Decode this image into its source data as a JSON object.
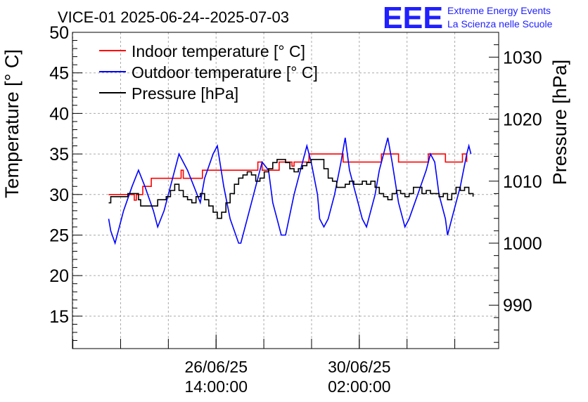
{
  "chart_data": {
    "type": "line",
    "title": "VICE-01 2025-06-24--2025-07-03",
    "logo": {
      "mark": "EEE",
      "line1": "Extreme Energy Events",
      "line2": "La Scienza nelle Scuole",
      "color": "#1f1fff"
    },
    "ylabel_left": "Temperature [° C]",
    "ylabel_right": "Pressure [hPa]",
    "ylim_left": [
      11,
      50
    ],
    "ylim_right": [
      983,
      1034
    ],
    "xlim": [
      0,
      1
    ],
    "left_ticks": [
      "15",
      "20",
      "25",
      "30",
      "35",
      "40",
      "45",
      "50"
    ],
    "right_ticks": [
      "990",
      "1000",
      "1010",
      "1020",
      "1030"
    ],
    "x_ticks": [
      {
        "pos": 0.337,
        "line1": "26/06/25",
        "line2": "14:00:00"
      },
      {
        "pos": 0.673,
        "line1": "30/06/25",
        "line2": "02:00:00"
      }
    ],
    "grid": true,
    "legend_position": "top-left",
    "series": [
      {
        "name": "Indoor temperature [° C]",
        "axis": "left",
        "color": "#ff0000",
        "step": true,
        "points": [
          [
            0.085,
            30
          ],
          [
            0.14,
            30
          ],
          [
            0.145,
            29.3
          ],
          [
            0.15,
            30
          ],
          [
            0.165,
            31
          ],
          [
            0.183,
            31
          ],
          [
            0.185,
            32
          ],
          [
            0.25,
            32
          ],
          [
            0.255,
            33
          ],
          [
            0.26,
            32
          ],
          [
            0.3,
            32
          ],
          [
            0.305,
            33
          ],
          [
            0.43,
            33
          ],
          [
            0.435,
            34
          ],
          [
            0.445,
            33
          ],
          [
            0.48,
            33
          ],
          [
            0.485,
            34
          ],
          [
            0.51,
            34
          ],
          [
            0.515,
            33.5
          ],
          [
            0.52,
            34
          ],
          [
            0.55,
            34
          ],
          [
            0.555,
            35
          ],
          [
            0.6,
            35
          ],
          [
            0.63,
            35
          ],
          [
            0.635,
            34
          ],
          [
            0.7,
            34
          ],
          [
            0.72,
            34
          ],
          [
            0.725,
            35
          ],
          [
            0.76,
            35
          ],
          [
            0.765,
            34
          ],
          [
            0.83,
            34
          ],
          [
            0.835,
            35
          ],
          [
            0.87,
            35
          ],
          [
            0.875,
            34
          ],
          [
            0.91,
            34
          ],
          [
            0.915,
            35
          ],
          [
            0.922,
            35
          ],
          [
            0.925,
            34
          ]
        ]
      },
      {
        "name": "Outdoor temperature [° C]",
        "axis": "left",
        "color": "#0000ff",
        "step": false,
        "points": [
          [
            0.085,
            27
          ],
          [
            0.09,
            25.5
          ],
          [
            0.1,
            24
          ],
          [
            0.12,
            28
          ],
          [
            0.14,
            31
          ],
          [
            0.155,
            33
          ],
          [
            0.17,
            31
          ],
          [
            0.19,
            28
          ],
          [
            0.2,
            26
          ],
          [
            0.215,
            28
          ],
          [
            0.24,
            33
          ],
          [
            0.25,
            35
          ],
          [
            0.27,
            33
          ],
          [
            0.285,
            31
          ],
          [
            0.3,
            29
          ],
          [
            0.31,
            32
          ],
          [
            0.33,
            35
          ],
          [
            0.34,
            36
          ],
          [
            0.355,
            31
          ],
          [
            0.37,
            27
          ],
          [
            0.39,
            24
          ],
          [
            0.395,
            24
          ],
          [
            0.41,
            27
          ],
          [
            0.43,
            31
          ],
          [
            0.44,
            33
          ],
          [
            0.445,
            34
          ],
          [
            0.46,
            33
          ],
          [
            0.47,
            29
          ],
          [
            0.48,
            27
          ],
          [
            0.49,
            25
          ],
          [
            0.5,
            25
          ],
          [
            0.52,
            30
          ],
          [
            0.54,
            34
          ],
          [
            0.55,
            36
          ],
          [
            0.56,
            34
          ],
          [
            0.575,
            30
          ],
          [
            0.58,
            27
          ],
          [
            0.59,
            26
          ],
          [
            0.6,
            27
          ],
          [
            0.615,
            30
          ],
          [
            0.63,
            34
          ],
          [
            0.64,
            37
          ],
          [
            0.65,
            33
          ],
          [
            0.665,
            30
          ],
          [
            0.68,
            27
          ],
          [
            0.69,
            26
          ],
          [
            0.71,
            30
          ],
          [
            0.72,
            33
          ],
          [
            0.73,
            35
          ],
          [
            0.74,
            37
          ],
          [
            0.75,
            34
          ],
          [
            0.765,
            29
          ],
          [
            0.775,
            27
          ],
          [
            0.78,
            26
          ],
          [
            0.79,
            27
          ],
          [
            0.81,
            30
          ],
          [
            0.83,
            33
          ],
          [
            0.84,
            35
          ],
          [
            0.85,
            34
          ],
          [
            0.86,
            30
          ],
          [
            0.875,
            27
          ],
          [
            0.88,
            25
          ],
          [
            0.89,
            27
          ],
          [
            0.91,
            31
          ],
          [
            0.925,
            35
          ],
          [
            0.93,
            36
          ],
          [
            0.935,
            35
          ]
        ]
      },
      {
        "name": "Pressure [hPa]",
        "axis": "right",
        "color": "#000000",
        "step": true,
        "points": [
          [
            0.085,
            1006.5
          ],
          [
            0.09,
            1007.5
          ],
          [
            0.12,
            1007.5
          ],
          [
            0.13,
            1008
          ],
          [
            0.145,
            1008
          ],
          [
            0.155,
            1007
          ],
          [
            0.16,
            1006
          ],
          [
            0.19,
            1006
          ],
          [
            0.2,
            1007
          ],
          [
            0.22,
            1007.5
          ],
          [
            0.23,
            1008.5
          ],
          [
            0.24,
            1009.5
          ],
          [
            0.25,
            1008.5
          ],
          [
            0.26,
            1007.5
          ],
          [
            0.27,
            1007
          ],
          [
            0.28,
            1006.5
          ],
          [
            0.29,
            1007.5
          ],
          [
            0.3,
            1008
          ],
          [
            0.31,
            1007
          ],
          [
            0.32,
            1006
          ],
          [
            0.33,
            1005
          ],
          [
            0.34,
            1004
          ],
          [
            0.35,
            1005
          ],
          [
            0.36,
            1006.5
          ],
          [
            0.37,
            1008
          ],
          [
            0.38,
            1009.5
          ],
          [
            0.39,
            1010.5
          ],
          [
            0.4,
            1011
          ],
          [
            0.41,
            1011.5
          ],
          [
            0.42,
            1011
          ],
          [
            0.43,
            1010
          ],
          [
            0.44,
            1010.5
          ],
          [
            0.45,
            1011.5
          ],
          [
            0.46,
            1012
          ],
          [
            0.47,
            1013
          ],
          [
            0.48,
            1013.5
          ],
          [
            0.5,
            1013
          ],
          [
            0.51,
            1012
          ],
          [
            0.52,
            1011.5
          ],
          [
            0.53,
            1012
          ],
          [
            0.54,
            1012.5
          ],
          [
            0.55,
            1013
          ],
          [
            0.56,
            1013.5
          ],
          [
            0.58,
            1013.5
          ],
          [
            0.59,
            1012
          ],
          [
            0.6,
            1010.5
          ],
          [
            0.61,
            1010
          ],
          [
            0.62,
            1009
          ],
          [
            0.64,
            1009.5
          ],
          [
            0.65,
            1010
          ],
          [
            0.66,
            1009.5
          ],
          [
            0.67,
            1009.5
          ],
          [
            0.68,
            1010
          ],
          [
            0.69,
            1009.5
          ],
          [
            0.7,
            1010
          ],
          [
            0.71,
            1009
          ],
          [
            0.72,
            1008
          ],
          [
            0.73,
            1007.5
          ],
          [
            0.74,
            1007
          ],
          [
            0.75,
            1008
          ],
          [
            0.76,
            1008.5
          ],
          [
            0.77,
            1008
          ],
          [
            0.78,
            1007.5
          ],
          [
            0.79,
            1008
          ],
          [
            0.8,
            1009
          ],
          [
            0.81,
            1009
          ],
          [
            0.82,
            1008
          ],
          [
            0.83,
            1008.5
          ],
          [
            0.84,
            1008
          ],
          [
            0.85,
            1008
          ],
          [
            0.86,
            1007.5
          ],
          [
            0.87,
            1008
          ],
          [
            0.88,
            1007
          ],
          [
            0.89,
            1008
          ],
          [
            0.9,
            1009
          ],
          [
            0.91,
            1008.5
          ],
          [
            0.92,
            1009
          ],
          [
            0.93,
            1008
          ],
          [
            0.94,
            1007.5
          ]
        ]
      }
    ]
  }
}
